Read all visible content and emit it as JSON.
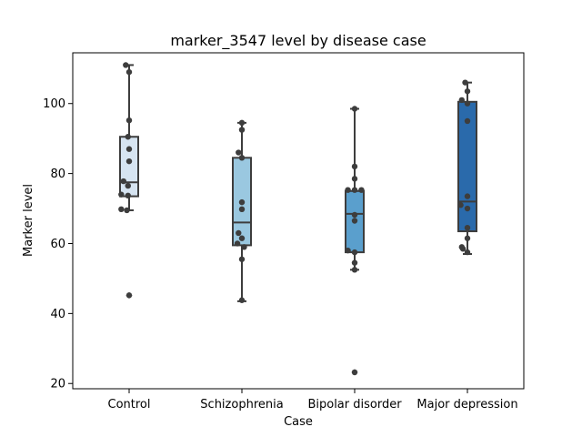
{
  "chart_data": {
    "type": "box",
    "title": "marker_3547 level by disease case",
    "xlabel": "Case",
    "ylabel": "Marker level",
    "ylim": [
      18.5,
      114.5
    ],
    "yticks": [
      20,
      40,
      60,
      80,
      100
    ],
    "grid": false,
    "categories": [
      "Control",
      "Schizophrenia",
      "Bipolar disorder",
      "Major depression"
    ],
    "colors": [
      "#d6e4f1",
      "#9ac8e0",
      "#5a9fcd",
      "#2a6aab"
    ],
    "boxes": [
      {
        "q1": 73.5,
        "median": 77.5,
        "q3": 90.5,
        "whisker_low": 69.5,
        "whisker_high": 111.0,
        "outliers": [
          45.2
        ]
      },
      {
        "q1": 59.5,
        "median": 66.0,
        "q3": 84.5,
        "whisker_low": 43.5,
        "whisker_high": 94.5,
        "outliers": []
      },
      {
        "q1": 57.5,
        "median": 68.5,
        "q3": 75.0,
        "whisker_low": 52.5,
        "whisker_high": 98.5,
        "outliers": [
          23.2
        ]
      },
      {
        "q1": 63.5,
        "median": 72.0,
        "q3": 100.5,
        "whisker_low": 57.0,
        "whisker_high": 106.0,
        "outliers": []
      }
    ],
    "points": [
      [
        {
          "y": 111.0,
          "dx": -0.03
        },
        {
          "y": 109.0,
          "dx": 0.0
        },
        {
          "y": 95.2,
          "dx": 0.0
        },
        {
          "y": 90.5,
          "dx": -0.01
        },
        {
          "y": 87.0,
          "dx": 0.0
        },
        {
          "y": 83.5,
          "dx": 0.0
        },
        {
          "y": 77.8,
          "dx": -0.05
        },
        {
          "y": 76.5,
          "dx": -0.01
        },
        {
          "y": 74.0,
          "dx": -0.07
        },
        {
          "y": 73.7,
          "dx": -0.01
        },
        {
          "y": 69.8,
          "dx": -0.07
        },
        {
          "y": 69.5,
          "dx": -0.02
        },
        {
          "y": 45.2,
          "dx": 0.0
        }
      ],
      [
        {
          "y": 94.5,
          "dx": 0.0
        },
        {
          "y": 92.5,
          "dx": 0.0
        },
        {
          "y": 86.0,
          "dx": -0.03
        },
        {
          "y": 84.5,
          "dx": 0.0
        },
        {
          "y": 71.8,
          "dx": 0.0
        },
        {
          "y": 69.8,
          "dx": 0.0
        },
        {
          "y": 63.0,
          "dx": -0.03
        },
        {
          "y": 61.5,
          "dx": 0.0
        },
        {
          "y": 60.0,
          "dx": -0.04
        },
        {
          "y": 59.0,
          "dx": 0.02
        },
        {
          "y": 55.5,
          "dx": 0.0
        },
        {
          "y": 43.8,
          "dx": 0.0
        }
      ],
      [
        {
          "y": 98.5,
          "dx": 0.0
        },
        {
          "y": 82.0,
          "dx": 0.0
        },
        {
          "y": 78.5,
          "dx": 0.0
        },
        {
          "y": 75.3,
          "dx": -0.06
        },
        {
          "y": 75.3,
          "dx": 0.0
        },
        {
          "y": 75.3,
          "dx": 0.06
        },
        {
          "y": 68.2,
          "dx": 0.0
        },
        {
          "y": 66.5,
          "dx": 0.0
        },
        {
          "y": 58.0,
          "dx": -0.06
        },
        {
          "y": 57.5,
          "dx": 0.0
        },
        {
          "y": 54.5,
          "dx": 0.0
        },
        {
          "y": 52.5,
          "dx": 0.0
        },
        {
          "y": 23.2,
          "dx": 0.0
        }
      ],
      [
        {
          "y": 106.0,
          "dx": -0.02
        },
        {
          "y": 103.5,
          "dx": 0.0
        },
        {
          "y": 101.0,
          "dx": -0.05
        },
        {
          "y": 100.0,
          "dx": 0.0
        },
        {
          "y": 95.0,
          "dx": 0.0
        },
        {
          "y": 73.5,
          "dx": 0.0
        },
        {
          "y": 71.0,
          "dx": -0.06
        },
        {
          "y": 70.0,
          "dx": 0.0
        },
        {
          "y": 64.5,
          "dx": 0.0
        },
        {
          "y": 61.5,
          "dx": 0.0
        },
        {
          "y": 59.0,
          "dx": -0.05
        },
        {
          "y": 58.5,
          "dx": -0.04
        },
        {
          "y": 57.5,
          "dx": 0.0
        }
      ]
    ]
  }
}
